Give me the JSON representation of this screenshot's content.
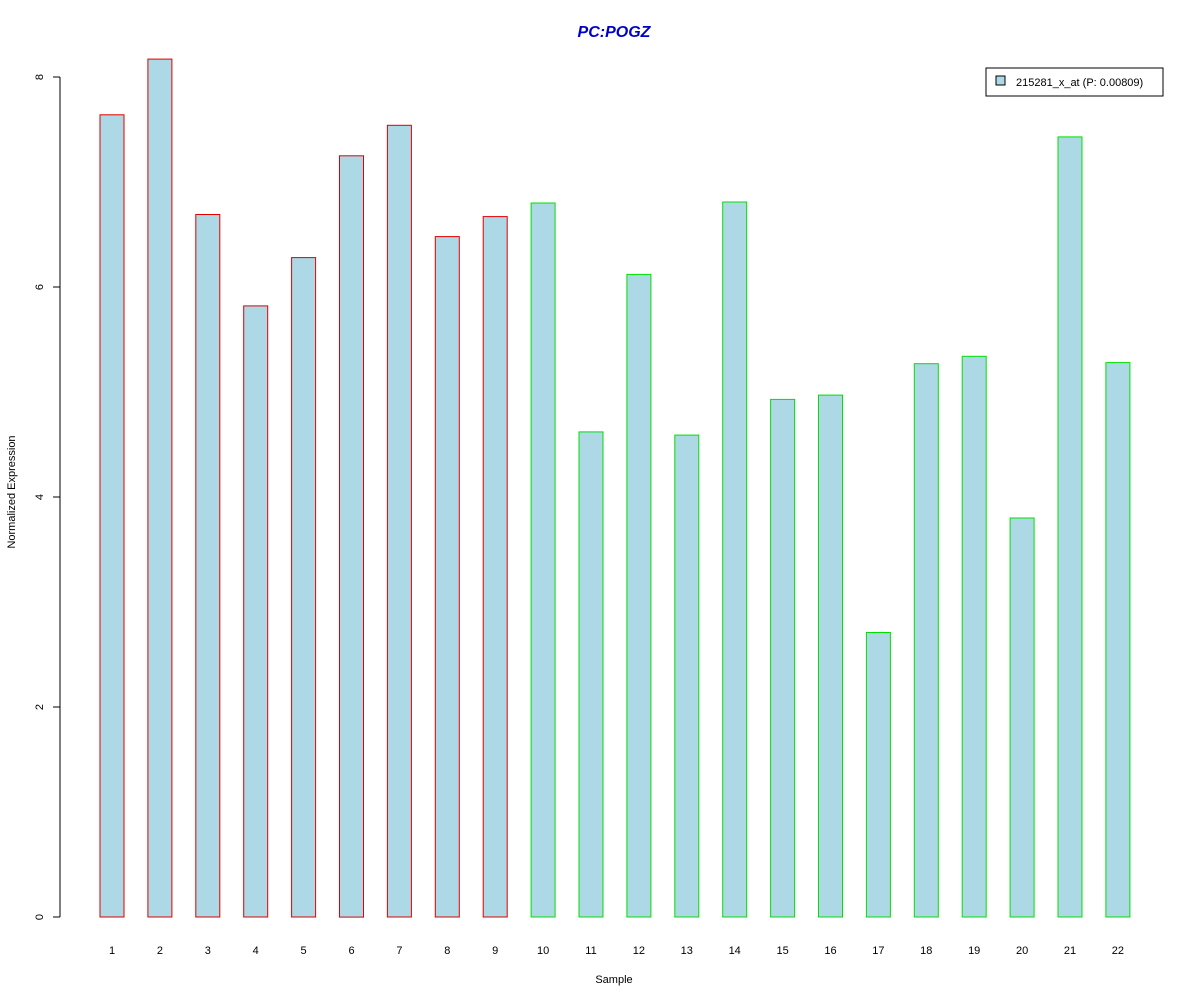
{
  "colors": {
    "title": "#0000cc",
    "bar_fill": "#add8e6",
    "group1_border": "#e00000",
    "group2_border": "#00e000",
    "axis": "#000000"
  },
  "chart_data": {
    "type": "bar",
    "title": "PC:POGZ",
    "xlabel": "Sample",
    "ylabel": "Normalized Expression",
    "ylim": [
      0,
      8
    ],
    "yticks": [
      0,
      2,
      4,
      6,
      8
    ],
    "grid": false,
    "legend_position": "top-right",
    "categories": [
      "1",
      "2",
      "3",
      "4",
      "5",
      "6",
      "7",
      "8",
      "9",
      "10",
      "11",
      "12",
      "13",
      "14",
      "15",
      "16",
      "17",
      "18",
      "19",
      "20",
      "21",
      "22"
    ],
    "series": [
      {
        "name": "215281_x_at (P: 0.00809)",
        "values": [
          7.64,
          8.17,
          6.69,
          5.82,
          6.28,
          7.25,
          7.54,
          6.48,
          6.67,
          6.8,
          4.62,
          6.12,
          4.59,
          6.81,
          4.93,
          4.97,
          2.71,
          5.27,
          5.34,
          3.8,
          7.43,
          5.28
        ]
      }
    ],
    "border_groups": [
      "group1",
      "group1",
      "group1",
      "group1",
      "group1",
      "group1",
      "group1",
      "group1",
      "group1",
      "group2",
      "group2",
      "group2",
      "group2",
      "group2",
      "group2",
      "group2",
      "group2",
      "group2",
      "group2",
      "group2",
      "group2",
      "group2"
    ]
  }
}
